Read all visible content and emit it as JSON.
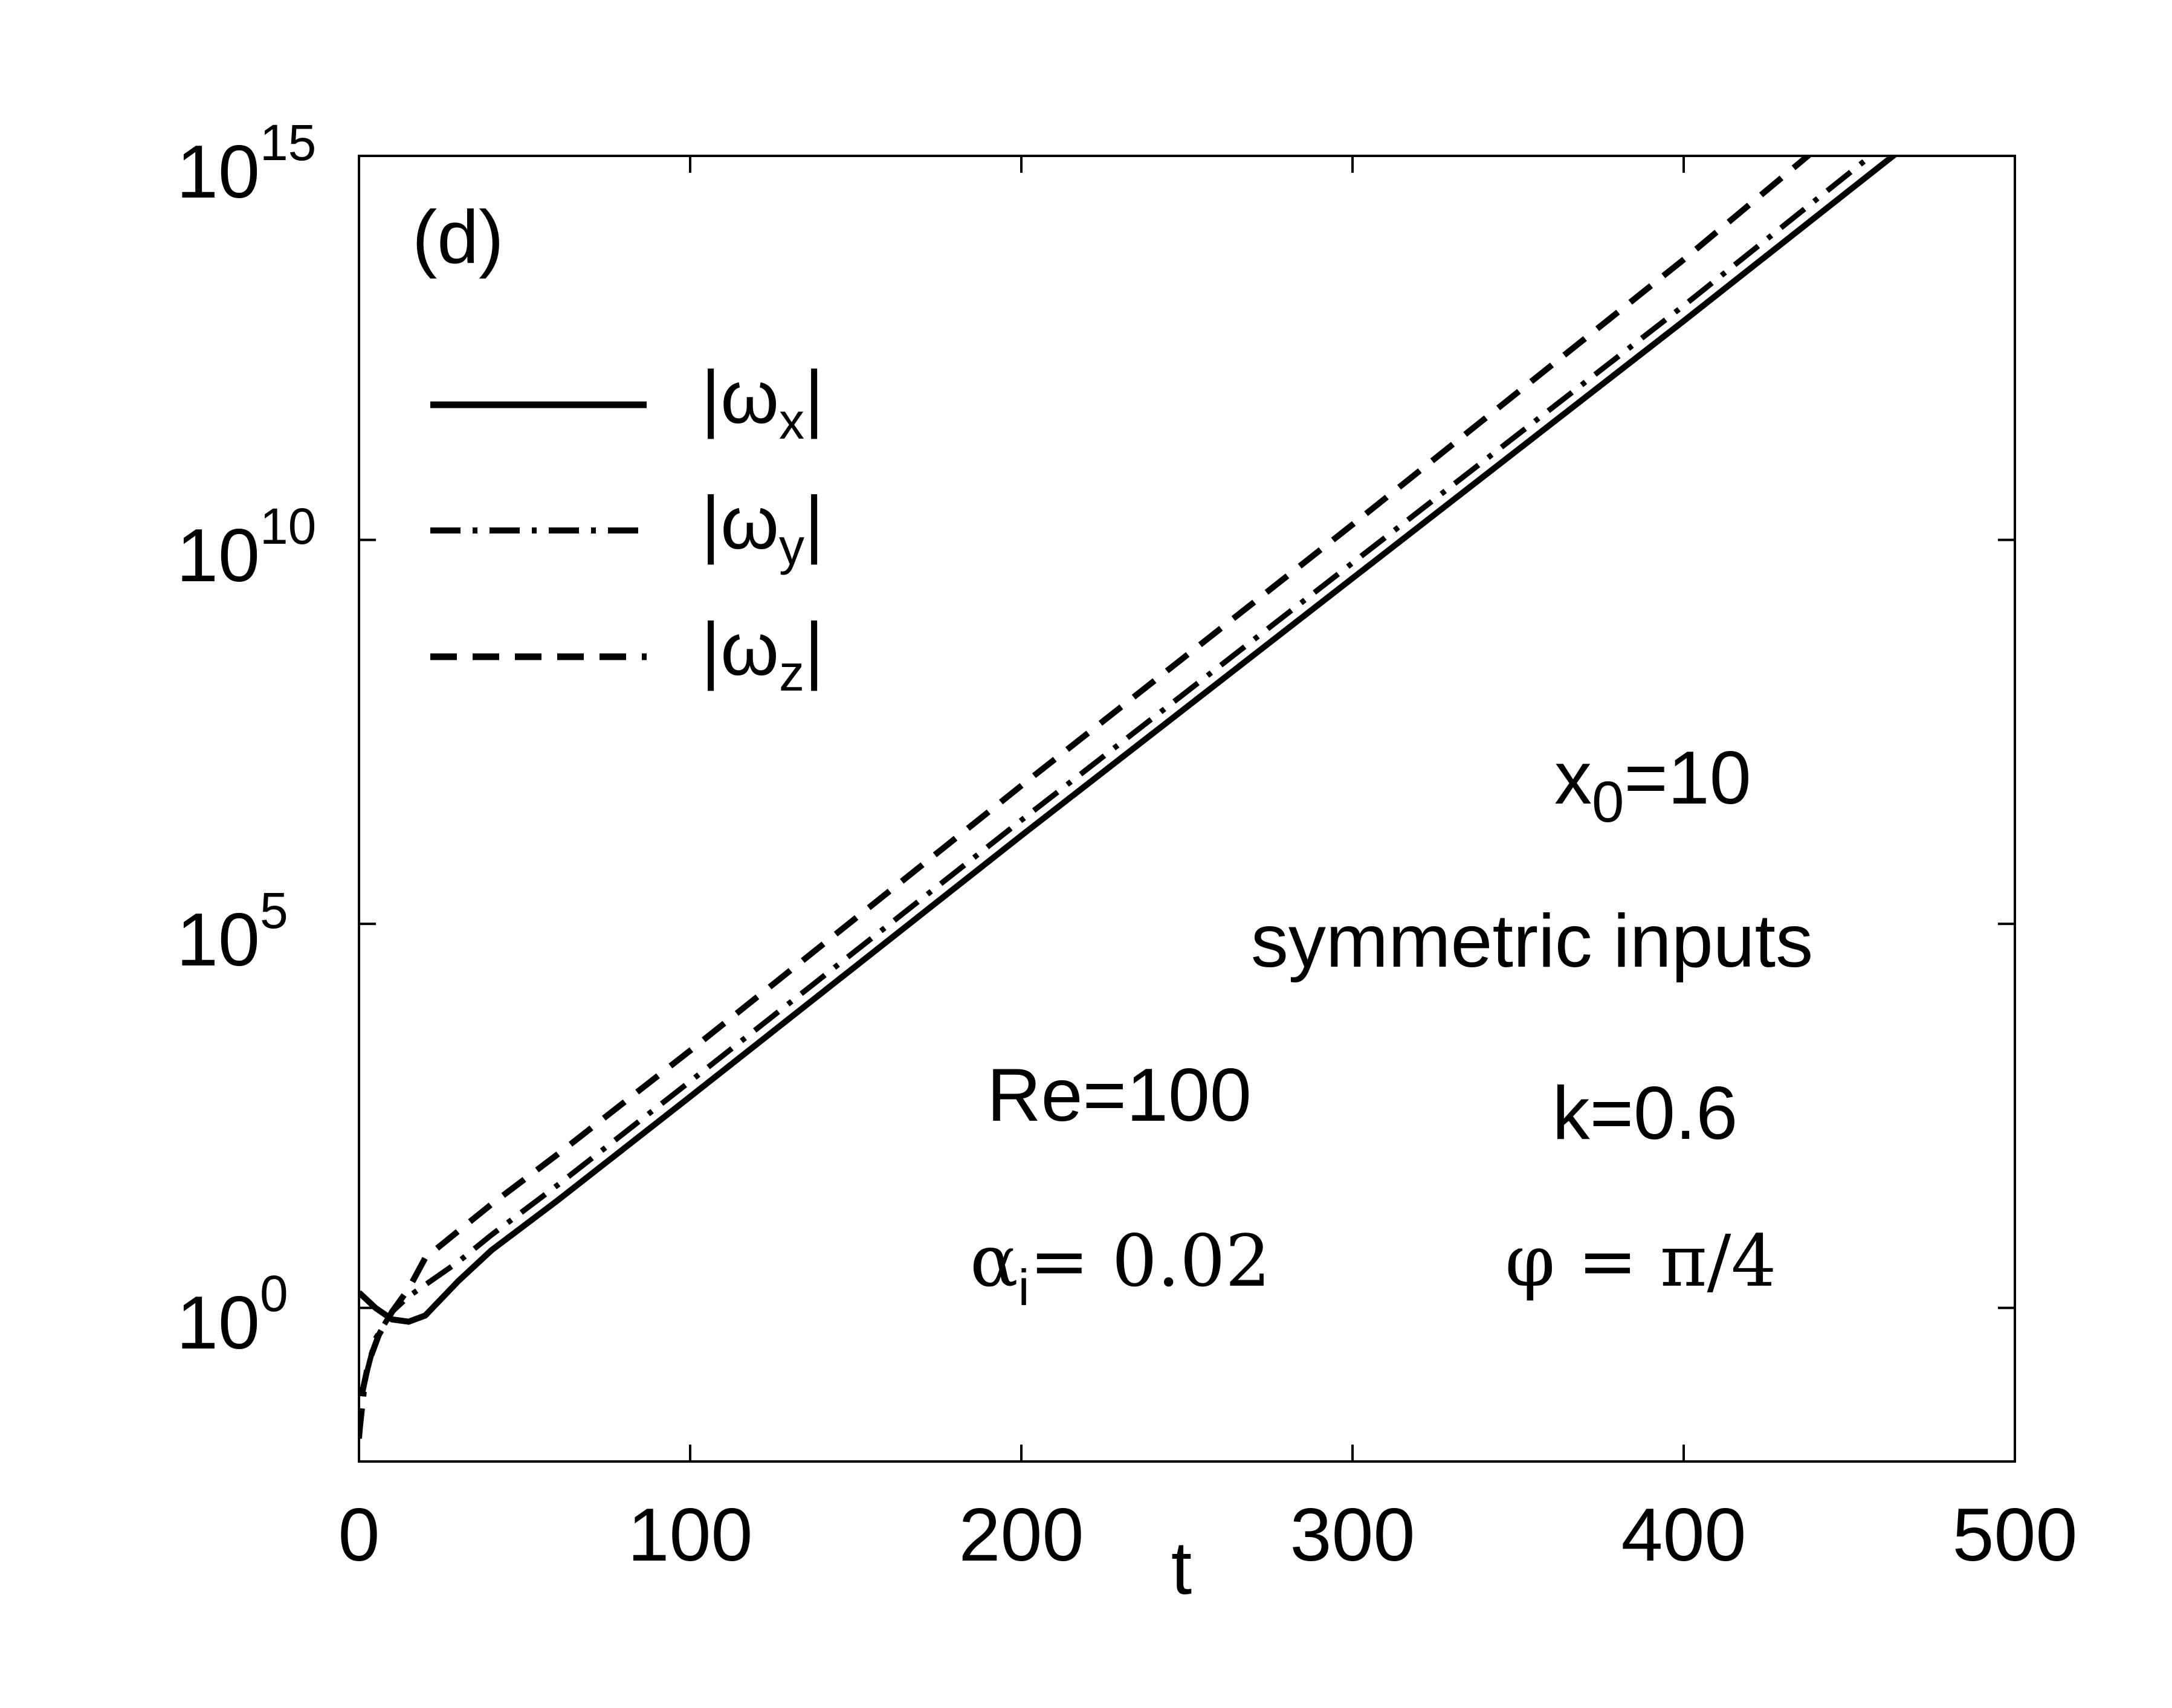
{
  "chart_data": {
    "type": "line",
    "panel_label": "(d)",
    "xlabel": "t",
    "ylabel": "",
    "xlim": [
      0,
      500
    ],
    "ylim_log10": [
      -2,
      15
    ],
    "yscale": "log",
    "x_ticks": [
      0,
      100,
      200,
      300,
      400,
      500
    ],
    "x_tick_labels": [
      "0",
      "100",
      "200",
      "300",
      "400",
      "500"
    ],
    "y_ticks_log10": [
      0,
      5,
      10,
      15
    ],
    "y_tick_labels": [
      {
        "base": "10",
        "exp": "0"
      },
      {
        "base": "10",
        "exp": "5"
      },
      {
        "base": "10",
        "exp": "10"
      },
      {
        "base": "10",
        "exp": "15"
      }
    ],
    "legend_position": "top-left",
    "series": [
      {
        "name": "|ωx|",
        "name_main": "|ω",
        "name_sub": "x",
        "name_close": "|",
        "style": "solid",
        "x": [
          0,
          5,
          10,
          15,
          20,
          30,
          40,
          60,
          100,
          200,
          300,
          400,
          500
        ],
        "log10_y": [
          0.2,
          0.0,
          -0.15,
          -0.18,
          -0.1,
          0.35,
          0.75,
          1.4,
          2.75,
          6.15,
          9.5,
          12.85,
          16.25
        ]
      },
      {
        "name": "|ωy|",
        "name_main": "|ω",
        "name_sub": "y",
        "name_close": "|",
        "style": "dashdot",
        "x": [
          0,
          2,
          5,
          10,
          15,
          20,
          30,
          40,
          60,
          100,
          200,
          300,
          400,
          500
        ],
        "log10_y": [
          -1.7,
          -0.9,
          -0.4,
          -0.05,
          0.15,
          0.3,
          0.6,
          0.95,
          1.6,
          2.95,
          6.35,
          9.7,
          13.05,
          16.5
        ]
      },
      {
        "name": "|ωz|",
        "name_main": "|ω",
        "name_sub": "z",
        "name_close": "|",
        "style": "dashed",
        "x": [
          0,
          1,
          3,
          6,
          10,
          15,
          20,
          30,
          40,
          60,
          100,
          200,
          300,
          400,
          500
        ],
        "log10_y": [
          -1.7,
          -1.1,
          -0.7,
          -0.35,
          -0.05,
          0.25,
          0.65,
          1.0,
          1.35,
          2.0,
          3.35,
          6.8,
          10.2,
          13.65,
          17.25
        ]
      }
    ],
    "annotations": {
      "x0_main": "x",
      "x0_sub": "0",
      "x0_value": "=10",
      "inputs": "symmetric inputs",
      "re": "Re=100",
      "k": "k=0.6",
      "alpha_main": "α",
      "alpha_sub": "i",
      "alpha_value": "= 0.02",
      "phi": "φ = π/4"
    }
  }
}
